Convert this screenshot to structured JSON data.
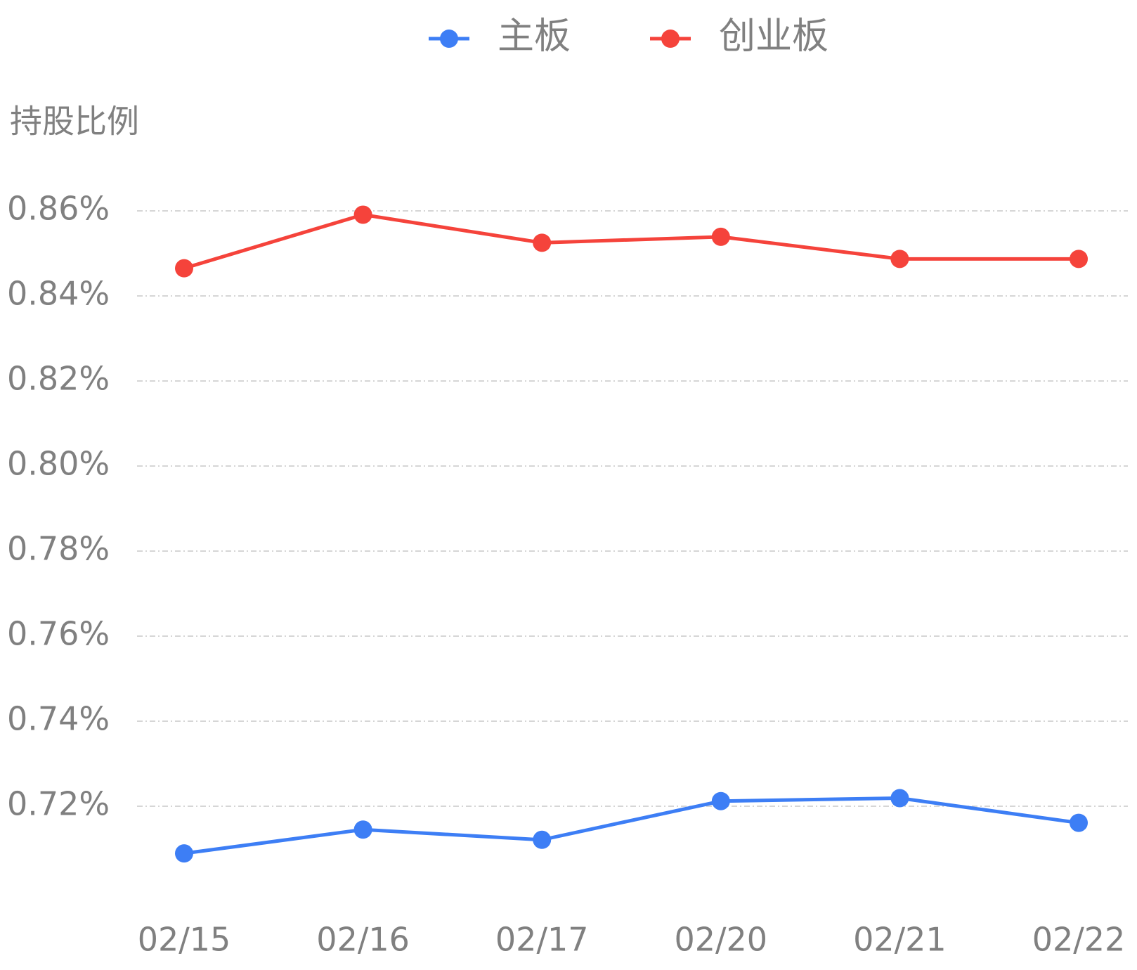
{
  "chart_data": {
    "type": "line",
    "y_axis_label": "持股比例",
    "categories": [
      "02/15",
      "02/16",
      "02/17",
      "02/20",
      "02/21",
      "02/22"
    ],
    "series": [
      {
        "name": "主板",
        "color": "#3d7ef5",
        "values": [
          0.7089,
          0.7145,
          0.7121,
          0.7212,
          0.7219,
          0.7161
        ]
      },
      {
        "name": "创业板",
        "color": "#f5433b",
        "values": [
          0.8465,
          0.8591,
          0.8525,
          0.8539,
          0.8487,
          0.8487
        ]
      }
    ],
    "ylim": [
      0.7,
      0.86
    ],
    "yticks": [
      {
        "value": 0.72,
        "label": "0.72%"
      },
      {
        "value": 0.74,
        "label": "0.74%"
      },
      {
        "value": 0.76,
        "label": "0.76%"
      },
      {
        "value": 0.78,
        "label": "0.78%"
      },
      {
        "value": 0.8,
        "label": "0.80%"
      },
      {
        "value": 0.82,
        "label": "0.82%"
      },
      {
        "value": 0.84,
        "label": "0.84%"
      },
      {
        "value": 0.86,
        "label": "0.86%"
      }
    ],
    "grid": true,
    "legend": "top"
  }
}
